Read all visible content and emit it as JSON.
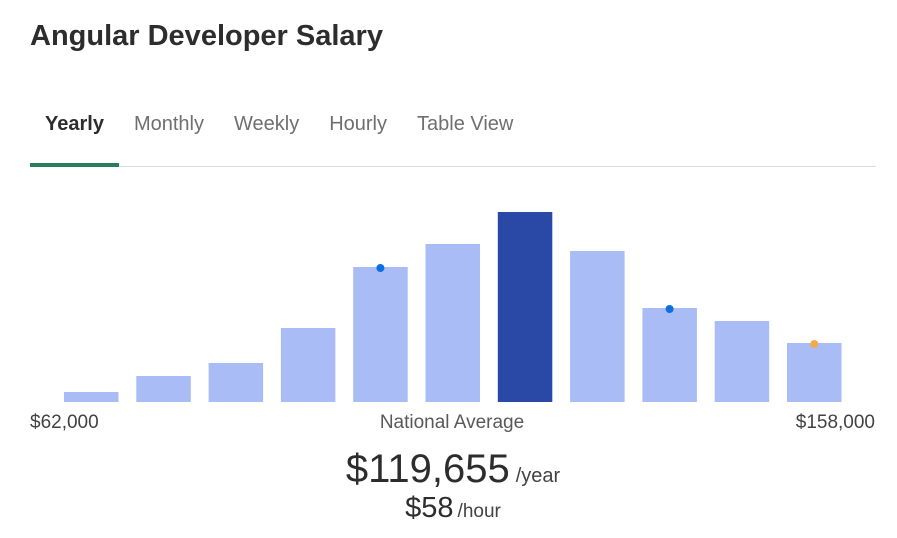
{
  "title": "Angular Developer Salary",
  "tabs": [
    {
      "label": "Yearly",
      "active": true
    },
    {
      "label": "Monthly",
      "active": false
    },
    {
      "label": "Weekly",
      "active": false
    },
    {
      "label": "Hourly",
      "active": false
    },
    {
      "label": "Table View",
      "active": false
    }
  ],
  "colors": {
    "bar": "#a9bcf5",
    "highlight_bar": "#2a49a6",
    "marker_blue": "#0b6fe0",
    "marker_orange": "#f5a94c",
    "tab_indicator": "#2a7d5f"
  },
  "range": {
    "min_label": "$62,000",
    "max_label": "$158,000"
  },
  "average": {
    "label": "National Average",
    "yearly_value": "$119,655",
    "yearly_unit": "/year",
    "hourly_value": "$58",
    "hourly_unit": "/hour"
  },
  "chart_data": {
    "type": "bar",
    "title": "",
    "xlabel": "",
    "ylabel": "",
    "x_range": [
      62000,
      158000
    ],
    "values": [
      10,
      26,
      39,
      74,
      135,
      158,
      190,
      151,
      94,
      81,
      59
    ],
    "highlight_index": 6,
    "markers": [
      {
        "bar_index": 4,
        "color": "blue"
      },
      {
        "bar_index": 8,
        "color": "blue"
      },
      {
        "bar_index": 10,
        "color": "orange"
      }
    ],
    "ylim": [
      0,
      190
    ],
    "grid": false,
    "legend": "none"
  }
}
